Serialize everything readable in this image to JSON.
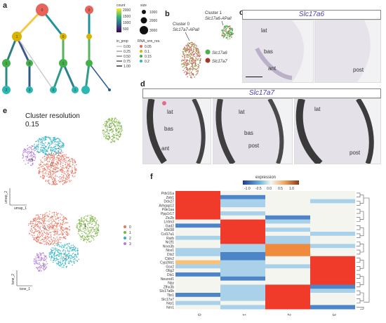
{
  "panels": {
    "a": "a",
    "b": "b",
    "c": "c",
    "d": "d",
    "e": "e",
    "f": "f"
  },
  "panel_a": {
    "colorbar_title": "count",
    "colorbar_ticks": [
      "2000",
      "1500",
      "1000",
      "500"
    ],
    "size_title": "size",
    "size_ticks": [
      "0",
      "1000",
      "2000",
      "3000"
    ],
    "in_prop_title": "in_prop",
    "in_prop_ticks": [
      "0.00",
      "0.25",
      "0.50",
      "0.75",
      "1.00"
    ],
    "res_title": "RNA_snn_res.",
    "res_ticks": [
      "0.05",
      "0.1",
      "0.15",
      "0.2"
    ],
    "res_colors": [
      "#e8635a",
      "#d9b400",
      "#43b04a",
      "#2bb8b0"
    ],
    "node_labels": [
      "0",
      "0",
      "1",
      "0",
      "1",
      "0",
      "1",
      "2",
      "3",
      "0",
      "1"
    ]
  },
  "panel_b": {
    "cluster0_line1": "Cluster 0",
    "cluster0_line2": "Slc17a7-APall",
    "cluster1_line1": "Cluster 1",
    "cluster1_line2": "Slc17a6-APall",
    "legend": [
      {
        "label": "Slc17a6",
        "color": "#4caf50"
      },
      {
        "label": "Slc17a7",
        "color": "#a0392b"
      }
    ]
  },
  "panel_c": {
    "gene": "Slc17a6",
    "labels": [
      "lat",
      "bas",
      "ant",
      "post"
    ]
  },
  "panel_d": {
    "gene": "Slc17a7",
    "labels": [
      "lat",
      "bas",
      "ant",
      "lat",
      "bas",
      "post",
      "lat",
      "post"
    ]
  },
  "panel_e": {
    "title_line1": "Cluster resolution",
    "title_line2": "0.15",
    "cluster_labels_top": [
      "1",
      "2",
      "3",
      "0"
    ],
    "cluster_labels_bottom": [
      "0",
      "1",
      "2",
      "3"
    ],
    "axis_top_x": "umap_1",
    "axis_top_y": "umap_2",
    "axis_bottom_x": "tsne_1",
    "axis_bottom_y": "tsne_2",
    "legend": [
      {
        "label": "0",
        "color": "#e8735f"
      },
      {
        "label": "1",
        "color": "#7cb342"
      },
      {
        "label": "2",
        "color": "#2bb1c4"
      },
      {
        "label": "3",
        "color": "#b07cd6"
      }
    ]
  },
  "panel_f": {
    "legend_title": "expression",
    "legend_ticks": [
      "-1.0",
      "-0.5",
      "0.0",
      "0.5",
      "1.0"
    ],
    "genes": [
      "Pdx1l1a",
      "Zeb1",
      "Ddx27",
      "Arhgap12",
      "Pde1aa",
      "Ppp1r17",
      "Zic2b",
      "Lrrtm3",
      "Gad2",
      "Klhl38",
      "Col17a1",
      "Rarb",
      "Nr2f1",
      "Nrxn3b",
      "Nos1",
      "Dlx2",
      "Cbln2",
      "Cyp26b1",
      "Gsx2",
      "Olig2",
      "Dlx1",
      "Neurod1",
      "Npy",
      "Zfhx3b",
      "Slc17a6b",
      "Tbr1",
      "Slc17a7",
      "Nrp1",
      "Nrn1"
    ],
    "x_labels": [
      "0",
      "1",
      "2",
      "3"
    ]
  }
}
